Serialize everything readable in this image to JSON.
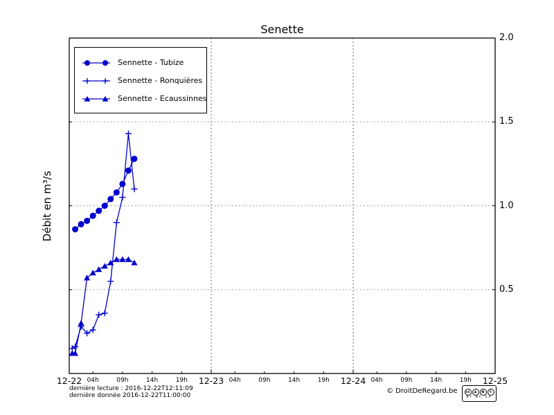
{
  "chart_data": {
    "type": "line",
    "title": "Senette",
    "xlabel": "",
    "ylabel": "Débit en m³/s",
    "x_unit": "hours since 2016-12-22 00:00",
    "xlim": [
      0,
      72
    ],
    "ylim": [
      0,
      2.0
    ],
    "grid": {
      "style": "dotted",
      "vertical_at": [
        24,
        48
      ],
      "horizontal_at": [
        0.5,
        1.0,
        1.5
      ]
    },
    "legend_position": "upper-left",
    "line_color": "#0000cc",
    "y_ticks": [
      {
        "value": 0.5,
        "label": "0.5"
      },
      {
        "value": 1.0,
        "label": "1.0"
      },
      {
        "value": 1.5,
        "label": "1.5"
      },
      {
        "value": 2.0,
        "label": "2.0"
      }
    ],
    "x_major_ticks": [
      {
        "pos": 0,
        "label": "12-22"
      },
      {
        "pos": 24,
        "label": "12-23"
      },
      {
        "pos": 48,
        "label": "12-24"
      },
      {
        "pos": 72,
        "label": "12-25"
      }
    ],
    "x_minor_ticks": [
      {
        "pos": 4,
        "label": "04h"
      },
      {
        "pos": 9,
        "label": "09h"
      },
      {
        "pos": 14,
        "label": "14h"
      },
      {
        "pos": 19,
        "label": "19h"
      },
      {
        "pos": 28,
        "label": "04h"
      },
      {
        "pos": 33,
        "label": "09h"
      },
      {
        "pos": 38,
        "label": "14h"
      },
      {
        "pos": 43,
        "label": "19h"
      },
      {
        "pos": 52,
        "label": "04h"
      },
      {
        "pos": 57,
        "label": "09h"
      },
      {
        "pos": 62,
        "label": "14h"
      },
      {
        "pos": 67,
        "label": "19h"
      }
    ],
    "series": [
      {
        "name": "Sennette - Tubize",
        "marker": "circle",
        "color": "#0000cc",
        "x": [
          1,
          2,
          3,
          4,
          5,
          6,
          7,
          8,
          9,
          10,
          11
        ],
        "y": [
          0.86,
          0.89,
          0.91,
          0.94,
          0.97,
          1.0,
          1.04,
          1.08,
          1.13,
          1.21,
          1.28
        ]
      },
      {
        "name": "Sennette - Ronquières",
        "marker": "plus",
        "color": "#0000cc",
        "x": [
          0.5,
          1,
          2,
          3,
          4,
          5,
          6,
          7,
          8,
          9,
          10,
          11
        ],
        "y": [
          0.15,
          0.16,
          0.28,
          0.24,
          0.26,
          0.35,
          0.36,
          0.55,
          0.9,
          1.05,
          1.43,
          1.1
        ]
      },
      {
        "name": "Sennette - Ecaussinnes",
        "marker": "triangle",
        "color": "#0000cc",
        "x": [
          0.5,
          1,
          2,
          3,
          4,
          5,
          6,
          7,
          8,
          9,
          10,
          11
        ],
        "y": [
          0.12,
          0.12,
          0.3,
          0.57,
          0.6,
          0.62,
          0.64,
          0.66,
          0.68,
          0.68,
          0.68,
          0.66
        ]
      }
    ]
  },
  "footer": {
    "line1": "dernière lecture : 2016-12-22T12:11:09",
    "line2": "dernière donnée  2016-12-22T11:00:00",
    "copyright": "© DroitDeRegard.be",
    "cc_badge": {
      "glyphs": [
        "cc",
        "♟",
        "$",
        "↻"
      ],
      "label": "BY NC SA"
    }
  }
}
